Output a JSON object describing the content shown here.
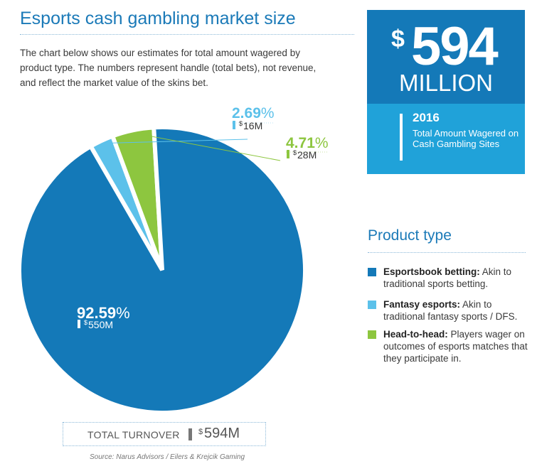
{
  "header": {
    "title": "Esports cash gambling market size",
    "intro": "The chart below shows our estimates for total amount wagered by product type. The numbers represent handle (total bets), not revenue, and reflect the market value of the skins bet."
  },
  "stat": {
    "dollar": "$",
    "number": "594",
    "unit": "MILLION",
    "year": "2016",
    "description": "Total Amount Wagered on Cash Gambling Sites"
  },
  "colors": {
    "esportsbook": "#1479b8",
    "fantasy": "#5cc1ea",
    "head_to_head": "#8dc63f",
    "accent": "#1b7ab8"
  },
  "legend": {
    "title": "Product type",
    "items": [
      {
        "name": "Esportsbook betting:",
        "desc": "Akin to traditional sports betting.",
        "color": "#1479b8"
      },
      {
        "name": "Fantasy esports:",
        "desc": "Akin to traditional fantasy sports / DFS.",
        "color": "#5cc1ea"
      },
      {
        "name": "Head-to-head:",
        "desc": "Players wager on outcomes of esports matches that they participate in.",
        "color": "#8dc63f"
      }
    ]
  },
  "chart_data": {
    "type": "pie",
    "title": "Esports cash gambling market size",
    "slices": [
      {
        "name": "Esportsbook betting",
        "percent": 92.59,
        "percent_label": "92.59%",
        "value": 550,
        "value_label": "550M",
        "currency": "$",
        "color": "#1479b8",
        "exploded": false
      },
      {
        "name": "Fantasy esports",
        "percent": 2.69,
        "percent_label": "2.69%",
        "value": 16,
        "value_label": "16M",
        "currency": "$",
        "color": "#5cc1ea",
        "exploded": true
      },
      {
        "name": "Head-to-head",
        "percent": 4.71,
        "percent_label": "4.71%",
        "value": 28,
        "value_label": "28M",
        "currency": "$",
        "color": "#8dc63f",
        "exploded": true
      }
    ],
    "total": {
      "label": "TOTAL TURNOVER",
      "currency": "$",
      "value": 594,
      "value_label": "594M"
    }
  },
  "source": "Source: Narus Advisors / Eilers & Krejcik Gaming"
}
